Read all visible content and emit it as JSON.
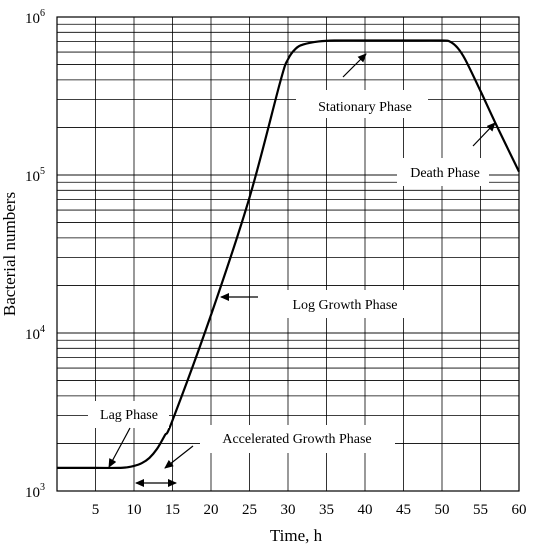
{
  "chart_data": {
    "type": "line",
    "title": "",
    "xlabel": "Time, h",
    "ylabel": "Bacterial numbers",
    "x_scale": "linear",
    "y_scale": "log",
    "xlim": [
      0,
      60
    ],
    "ylim": [
      1000,
      1000000
    ],
    "grid": true,
    "x_ticks": [
      5,
      10,
      15,
      20,
      25,
      30,
      35,
      40,
      45,
      50,
      55,
      60
    ],
    "y_ticks": [
      1000,
      10000,
      100000,
      1000000
    ],
    "y_tick_labels": [
      {
        "base": "10",
        "exp": "3"
      },
      {
        "base": "10",
        "exp": "4"
      },
      {
        "base": "10",
        "exp": "5"
      },
      {
        "base": "10",
        "exp": "6"
      }
    ],
    "series": [
      {
        "x": [
          0,
          5,
          8,
          9,
          10,
          11,
          12,
          13,
          14,
          15,
          20,
          25,
          29,
          30,
          31,
          32,
          34,
          36,
          40,
          45,
          50,
          51,
          52,
          53,
          55,
          57,
          60
        ],
        "y": [
          1400,
          1400,
          1400,
          1410,
          1440,
          1500,
          1620,
          1850,
          2250,
          2800,
          13000,
          72000,
          390000,
          540000,
          630000,
          670000,
          700000,
          710000,
          710000,
          710000,
          710000,
          700000,
          640000,
          540000,
          340000,
          210000,
          105000
        ]
      }
    ],
    "annotations": [
      {
        "text": "Lag Phase",
        "arrow_to": [
          6.5,
          1420
        ]
      },
      {
        "text": "Accelerated Growth Phase",
        "arrow_to": [
          13.5,
          1450
        ],
        "range_arrow": [
          10,
          15
        ]
      },
      {
        "text": "Log Growth Phase",
        "arrow_to": [
          20.5,
          16000
        ]
      },
      {
        "text": "Stationary Phase",
        "arrow_to": [
          40,
          650000
        ]
      },
      {
        "text": "Death Phase",
        "arrow_to": [
          56,
          225000
        ]
      }
    ]
  }
}
